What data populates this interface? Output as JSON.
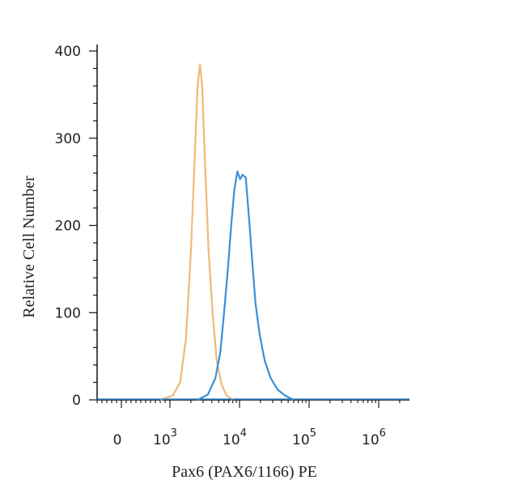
{
  "chart_data": {
    "type": "line",
    "title": "",
    "xlabel": "Pax6 (PAX6/1166) PE",
    "ylabel": "Relative Cell Number",
    "x_scale": "biexponential",
    "ylim": [
      0,
      400
    ],
    "y_ticks": [
      0,
      100,
      200,
      300,
      400
    ],
    "x_ticks": [
      {
        "base": "0",
        "exp": ""
      },
      {
        "base": "10",
        "exp": "3"
      },
      {
        "base": "10",
        "exp": "4"
      },
      {
        "base": "10",
        "exp": "5"
      },
      {
        "base": "10",
        "exp": "6"
      }
    ],
    "grid": false,
    "legend": "none",
    "series": [
      {
        "color": "#f0b97a",
        "points": [
          [
            800,
            0
          ],
          [
            1100,
            5
          ],
          [
            1400,
            20
          ],
          [
            1700,
            70
          ],
          [
            2000,
            170
          ],
          [
            2300,
            290
          ],
          [
            2500,
            360
          ],
          [
            2700,
            385
          ],
          [
            2900,
            360
          ],
          [
            3200,
            270
          ],
          [
            3600,
            170
          ],
          [
            4100,
            100
          ],
          [
            4700,
            45
          ],
          [
            5500,
            18
          ],
          [
            6500,
            5
          ],
          [
            8000,
            0
          ]
        ]
      },
      {
        "color": "#3a8fd6",
        "points": [
          [
            2500,
            0
          ],
          [
            3500,
            6
          ],
          [
            4500,
            25
          ],
          [
            5300,
            55
          ],
          [
            6000,
            100
          ],
          [
            6800,
            150
          ],
          [
            7600,
            200
          ],
          [
            8400,
            240
          ],
          [
            9300,
            262
          ],
          [
            10200,
            253
          ],
          [
            11000,
            258
          ],
          [
            12300,
            255
          ],
          [
            13800,
            205
          ],
          [
            15200,
            160
          ],
          [
            17000,
            110
          ],
          [
            19500,
            75
          ],
          [
            23000,
            45
          ],
          [
            28000,
            25
          ],
          [
            35000,
            12
          ],
          [
            45000,
            5
          ],
          [
            60000,
            0
          ]
        ]
      }
    ]
  }
}
